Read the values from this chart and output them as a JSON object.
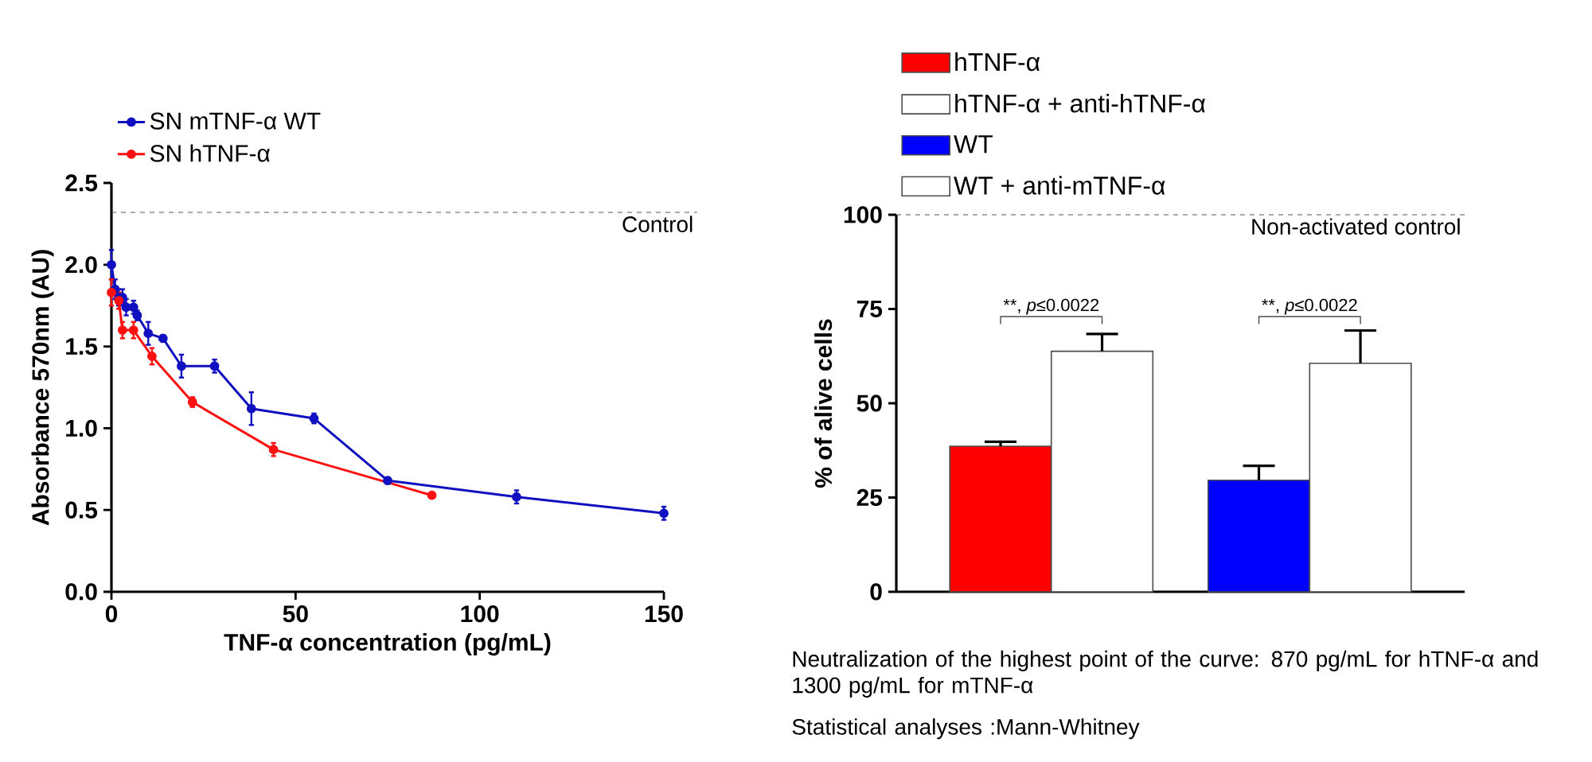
{
  "chart_data": [
    {
      "type": "line",
      "xlabel": "TNF-α concentration (pg/mL)",
      "ylabel": "Absorbance 570nm (AU)",
      "marker": "circle",
      "legend": "top left",
      "xlim": [
        0,
        150
      ],
      "ylim": [
        0,
        2.5
      ],
      "xticks": [
        0,
        50,
        100,
        150
      ],
      "yticks": [
        {
          "value": 0,
          "label": "0.0"
        },
        {
          "value": 0.5,
          "label": "0.5"
        },
        {
          "value": 1,
          "label": "1.0"
        },
        {
          "value": 1.5,
          "label": "1.5"
        },
        {
          "value": 2,
          "label": "2.0"
        },
        {
          "value": 2.5,
          "label": "2.5"
        }
      ],
      "series": [
        {
          "name": "SN mTNF-α WT",
          "color": "#1010c0",
          "x": [
            0,
            1,
            2,
            3,
            4,
            6,
            7,
            10,
            14,
            19,
            28,
            38,
            55,
            75,
            110,
            150
          ],
          "values": [
            2.0,
            1.85,
            1.8,
            1.8,
            1.74,
            1.74,
            1.69,
            1.58,
            1.55,
            1.38,
            1.38,
            1.12,
            1.06,
            0.68,
            0.58,
            0.48
          ],
          "errors": [
            0.09,
            0.06,
            0.05,
            0.05,
            0.05,
            0.04,
            0.03,
            0.07,
            0.02,
            0.07,
            0.04,
            0.1,
            0.03,
            0.02,
            0.04,
            0.04
          ]
        },
        {
          "name": "SN hTNF-α",
          "color": "#ff1010",
          "x": [
            0,
            2,
            3,
            6,
            11,
            22,
            44,
            87
          ],
          "values": [
            1.83,
            1.78,
            1.6,
            1.6,
            1.44,
            1.16,
            0.87,
            0.59
          ],
          "errors": [
            0.08,
            0.05,
            0.05,
            0.05,
            0.05,
            0.03,
            0.04,
            0.01
          ]
        }
      ],
      "ref_lines": [
        {
          "axis": "y",
          "value": 2.32,
          "label": "Control",
          "line_style": "dashed"
        }
      ]
    },
    {
      "type": "bar",
      "ylabel": "% of alive cells",
      "legend": "top left",
      "tick_labels": "y",
      "categories": [
        null,
        null
      ],
      "ylim": [
        0,
        100
      ],
      "yticks": [
        0,
        25,
        50,
        75,
        100
      ],
      "series": [
        {
          "name": "hTNF-α",
          "color": "#ff0000",
          "values": [
            38.6,
            null
          ],
          "errors": [
            [
              38.6,
              39.8
            ],
            null
          ]
        },
        {
          "name": "hTNF-α + anti-hTNF-α",
          "color": "#ffffff",
          "values": [
            63.8,
            null
          ],
          "errors": [
            [
              63.8,
              68.4
            ],
            null
          ]
        },
        {
          "name": "WT",
          "color": "#0000ff",
          "values": [
            null,
            29.6
          ],
          "errors": [
            null,
            [
              29.6,
              33.4
            ]
          ]
        },
        {
          "name": "WT + anti-mTNF-α",
          "color": "#ffffff",
          "values": [
            null,
            60.6
          ],
          "errors": [
            null,
            [
              60.6,
              69.3
            ]
          ]
        }
      ],
      "ref_lines": [
        {
          "axis": "y",
          "value": 100,
          "label": "Non-activated control",
          "line_style": "dashed"
        }
      ],
      "annotations": [
        "**, *p*≤0.0022",
        "**, *p*≤0.0022",
        "Neutralization of the highest point of the curve: 870 pg/mL for hTNF-α and 1300 pg/mL for mTNF-α",
        "Statistical analyses :Mann-Whitney"
      ]
    }
  ]
}
